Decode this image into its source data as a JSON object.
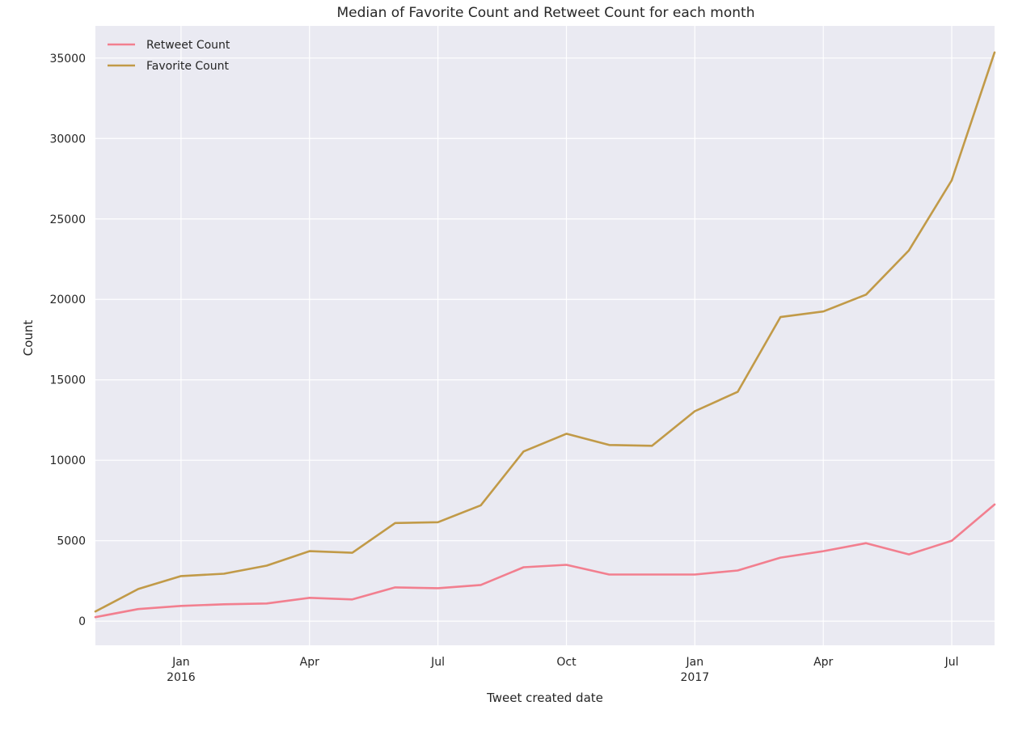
{
  "chart_data": {
    "type": "line",
    "title": "Median of Favorite Count and Retweet Count for each month",
    "xlabel": "Tweet created date",
    "ylabel": "Count",
    "x": [
      "2015-11",
      "2015-12",
      "2016-01",
      "2016-02",
      "2016-03",
      "2016-04",
      "2016-05",
      "2016-06",
      "2016-07",
      "2016-08",
      "2016-09",
      "2016-10",
      "2016-11",
      "2016-12",
      "2017-01",
      "2017-02",
      "2017-03",
      "2017-04",
      "2017-05",
      "2017-06",
      "2017-07",
      "2017-08"
    ],
    "series": [
      {
        "name": "Retweet Count",
        "color": "#f27f8f",
        "values": [
          250,
          750,
          950,
          1050,
          1100,
          1450,
          1350,
          2100,
          2050,
          2250,
          3350,
          3500,
          2900,
          2900,
          2900,
          3150,
          3950,
          4350,
          4850,
          4150,
          5000,
          7250
        ]
      },
      {
        "name": "Favorite Count",
        "color": "#c19a48",
        "values": [
          600,
          2000,
          2800,
          2950,
          3450,
          4350,
          4250,
          6100,
          6150,
          7200,
          10550,
          11650,
          10950,
          10900,
          13050,
          14250,
          18900,
          19250,
          20300,
          23050,
          27400,
          35350
        ]
      }
    ],
    "x_ticks": [
      {
        "date": "2016-01",
        "label": "Jan",
        "sublabel": "2016"
      },
      {
        "date": "2016-04",
        "label": "Apr",
        "sublabel": ""
      },
      {
        "date": "2016-07",
        "label": "Jul",
        "sublabel": ""
      },
      {
        "date": "2016-10",
        "label": "Oct",
        "sublabel": ""
      },
      {
        "date": "2017-01",
        "label": "Jan",
        "sublabel": "2017"
      },
      {
        "date": "2017-04",
        "label": "Apr",
        "sublabel": ""
      },
      {
        "date": "2017-07",
        "label": "Jul",
        "sublabel": ""
      }
    ],
    "y_ticks": [
      0,
      5000,
      10000,
      15000,
      20000,
      25000,
      30000,
      35000
    ],
    "xlim": [
      "2015-11",
      "2017-08"
    ],
    "ylim": [
      -1500,
      37000
    ],
    "grid": true,
    "legend_position": "top-left"
  }
}
